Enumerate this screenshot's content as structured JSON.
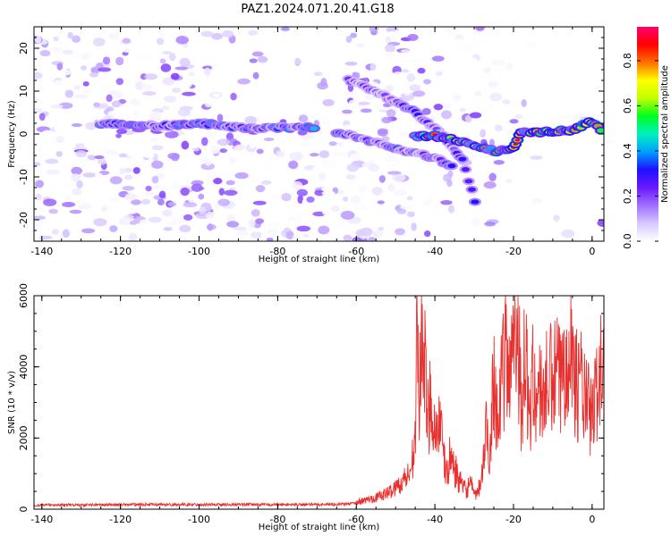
{
  "title": "PAZ1.2024.071.20.41.G18",
  "colors": {
    "snr_line": "#e8302e",
    "frame": "#000000",
    "colormap": [
      "#ffffff",
      "#d8c8ff",
      "#a070ff",
      "#6a18ff",
      "#1e10ff",
      "#00a0ff",
      "#00f0c0",
      "#00ff20",
      "#c0ff00",
      "#ffff00",
      "#ff7000",
      "#ff0000",
      "#ff0070"
    ]
  },
  "chart_data": [
    {
      "type": "heatmap",
      "title": "PAZ1.2024.071.20.41.G18",
      "xlabel": "Height of straight line (km)",
      "ylabel": "Frequency (Hz)",
      "xlim": [
        -142,
        3
      ],
      "ylim": [
        -25,
        25
      ],
      "xticks": [
        -140,
        -120,
        -100,
        -80,
        -60,
        -40,
        -20,
        0
      ],
      "yticks": [
        -20,
        -10,
        0,
        10,
        20
      ],
      "colorbar": {
        "label": "Normalized spectral amplitude",
        "range": [
          0,
          0.95
        ],
        "ticks": [
          0.0,
          0.2,
          0.4,
          0.6,
          0.8
        ]
      },
      "ridges": [
        {
          "points": [
            [
              -125,
              2.5
            ],
            [
              -110,
              1.8
            ],
            [
              -100,
              2.5
            ],
            [
              -90,
              1.5
            ],
            [
              -80,
              1.5
            ],
            [
              -70,
              1.6
            ]
          ],
          "amplitude": 0.4
        },
        {
          "points": [
            [
              -65,
              0.5
            ],
            [
              -55,
              -2
            ],
            [
              -45,
              -4.5
            ],
            [
              -40,
              -5.5
            ],
            [
              -35,
              -8
            ]
          ],
          "amplitude": 0.35
        },
        {
          "points": [
            [
              -62,
              12.5
            ],
            [
              -55,
              10
            ],
            [
              -45,
              5
            ],
            [
              -38,
              0
            ],
            [
              -33,
              -6
            ],
            [
              -29,
              -18
            ]
          ],
          "amplitude": 0.3
        },
        {
          "points": [
            [
              -45,
              -0.5
            ],
            [
              -40,
              -0.5
            ],
            [
              -32,
              -2
            ],
            [
              -25,
              -4
            ],
            [
              -20,
              -3.5
            ],
            [
              -18,
              0.5
            ],
            [
              -10,
              0.5
            ],
            [
              -5,
              1
            ],
            [
              0,
              3
            ],
            [
              3,
              0
            ]
          ],
          "amplitude": 0.75
        }
      ]
    },
    {
      "type": "line",
      "xlabel": "Height of straight line (km)",
      "ylabel": "SNR (10 * v/v)",
      "xlim": [
        -142,
        3
      ],
      "ylim": [
        0,
        6000
      ],
      "xticks": [
        -140,
        -120,
        -100,
        -80,
        -60,
        -40,
        -20,
        0
      ],
      "yticks": [
        0,
        2000,
        4000,
        6000
      ],
      "series": [
        {
          "x": [
            -142,
            -130,
            -120,
            -110,
            -100,
            -90,
            -80,
            -70,
            -62,
            -58,
            -55,
            -52,
            -50,
            -48,
            -46,
            -45,
            -44.5,
            -44,
            -43,
            -42,
            -41,
            -40,
            -39,
            -38,
            -37,
            -36,
            -35,
            -34,
            -33,
            -32,
            -31,
            -30,
            -29,
            -28,
            -27,
            -26,
            -25,
            -24,
            -23,
            -22,
            -21,
            -20,
            -19,
            -18,
            -17,
            -16,
            -15,
            -14,
            -13,
            -12,
            -11,
            -10,
            -9,
            -8,
            -7,
            -6,
            -5,
            -4,
            -3,
            -2,
            -1,
            0,
            1,
            2,
            3
          ],
          "y": [
            120,
            120,
            125,
            130,
            130,
            130,
            130,
            130,
            150,
            220,
            300,
            420,
            550,
            750,
            1000,
            2800,
            5500,
            3200,
            5400,
            2600,
            3400,
            2200,
            2700,
            1700,
            1000,
            1600,
            1200,
            900,
            650,
            550,
            800,
            380,
            500,
            1000,
            2200,
            1800,
            4100,
            2600,
            3600,
            4700,
            3500,
            6000,
            5600,
            3000,
            4500,
            2800,
            3800,
            3200,
            3500,
            3400,
            3900,
            3600,
            4100,
            3600,
            4400,
            5300,
            4500,
            3600,
            3900,
            3200,
            3000,
            2600,
            3400,
            4100,
            3800
          ]
        }
      ]
    }
  ]
}
